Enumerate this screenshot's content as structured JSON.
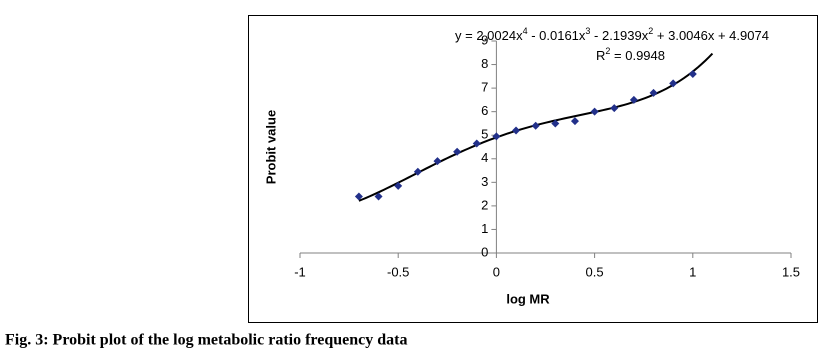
{
  "chart_data": {
    "type": "scatter",
    "x_label": "log MR",
    "y_label": "Probit value",
    "caption": "Fig. 3: Probit plot of the log metabolic ratio frequency data",
    "x": [
      -0.7,
      -0.6,
      -0.5,
      -0.4,
      -0.3,
      -0.2,
      -0.1,
      0,
      0.1,
      0.2,
      0.3,
      0.4,
      0.5,
      0.6,
      0.7,
      0.8,
      0.9,
      1.0
    ],
    "values": [
      2.4,
      2.4,
      2.85,
      3.45,
      3.9,
      4.3,
      4.65,
      4.95,
      5.2,
      5.4,
      5.5,
      5.6,
      6.0,
      6.15,
      6.5,
      6.8,
      7.2,
      7.6
    ],
    "color": "#22308a",
    "xlim": [
      -1,
      1.5
    ],
    "xticks": [
      -1,
      -0.5,
      0,
      0.5,
      1,
      1.5
    ],
    "ylim": [
      0,
      9
    ],
    "yticks": [
      0,
      1,
      2,
      3,
      4,
      5,
      6,
      7,
      8,
      9
    ],
    "trendline": {
      "coefficients": [
        2.0024,
        -0.0161,
        -2.1939,
        3.0046,
        4.9074
      ],
      "xrange": [
        -0.7,
        1.1
      ],
      "equation": [
        "y = 2.0024x",
        "4",
        " - 0.0161x",
        "3",
        " - 2.1939x",
        "2",
        " + 3.0046x + 4.9074"
      ],
      "r_squared": [
        "R",
        "2",
        " = 0.9948"
      ]
    }
  }
}
